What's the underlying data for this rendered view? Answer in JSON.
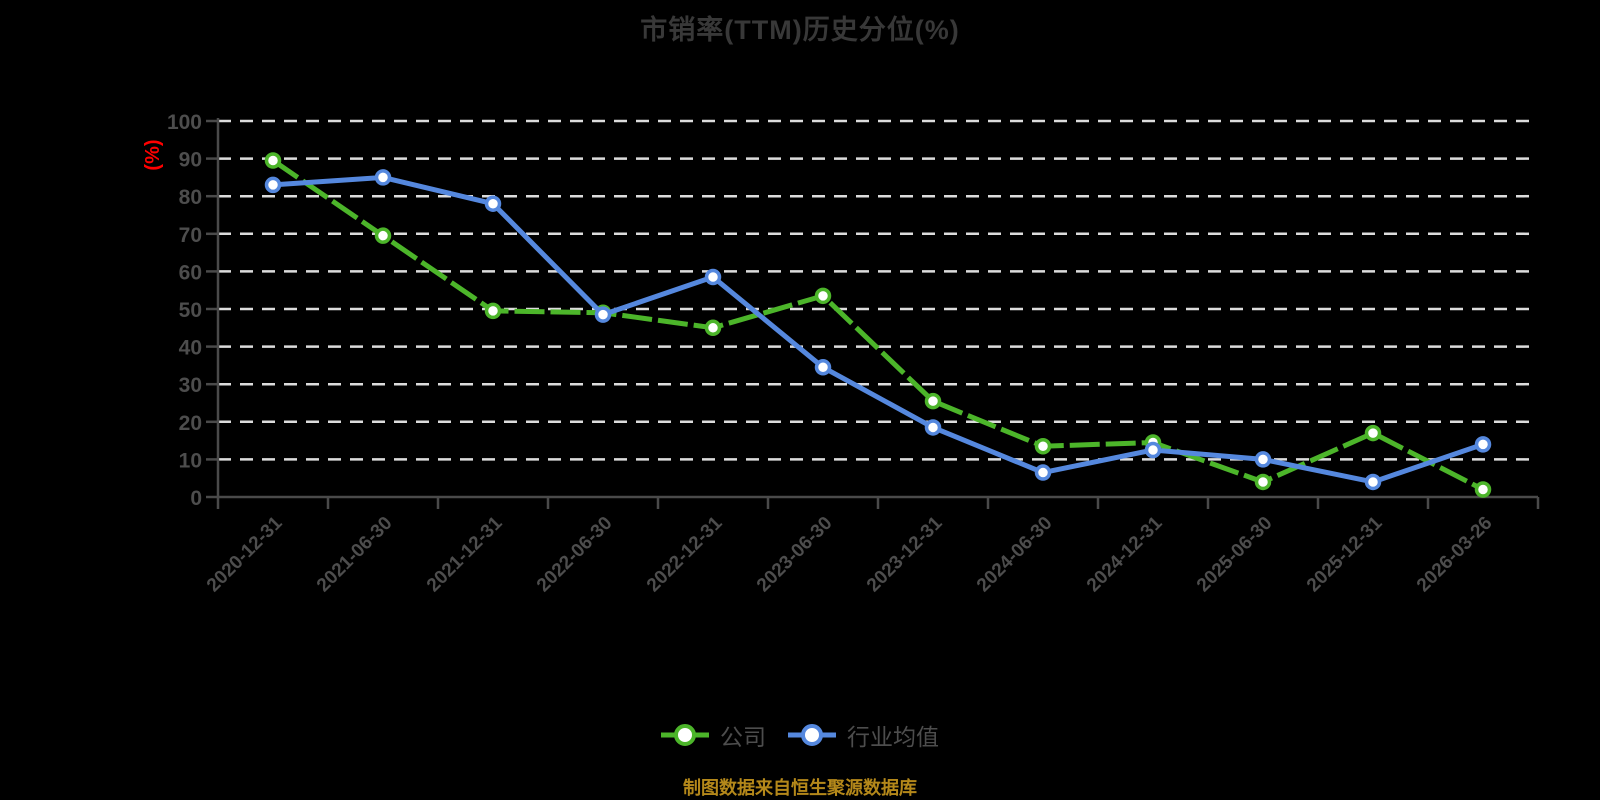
{
  "header": {
    "title": "市销率(TTM)历史分位(%)"
  },
  "footer": {
    "source_note": "制图数据来自恒生聚源数据库",
    "color": "#B4881A"
  },
  "chart_data": {
    "type": "line",
    "title": "市销率(TTM)历史分位(%)",
    "xlabel": "",
    "ylabel": "(%)",
    "ylim": [
      0,
      100
    ],
    "ytick_interval": 10,
    "grid": "horizontal-dashed",
    "legend_position": "bottom-center",
    "categories": [
      "2020-12-31",
      "2021-06-30",
      "2021-12-31",
      "2022-06-30",
      "2022-12-31",
      "2023-06-30",
      "2023-12-31",
      "2024-06-30",
      "2024-12-31",
      "2025-06-30",
      "2025-12-31",
      "2026-03-26"
    ],
    "series": [
      {
        "id": "company",
        "name": "公司",
        "color": "#4CB52A",
        "line_style": "long-dash",
        "values": [
          89.5,
          69.5,
          49.5,
          49,
          45,
          53.5,
          25.5,
          13.5,
          14.5,
          4,
          17,
          2
        ]
      },
      {
        "id": "industry-average",
        "name": "行业均值",
        "color": "#5588DE",
        "line_style": "solid",
        "values": [
          83,
          85,
          78,
          48.5,
          58.5,
          34.5,
          18.5,
          6.5,
          12.5,
          10,
          4,
          14
        ]
      }
    ],
    "colors": {
      "background": "#000000",
      "gridline": "#DCDCDC",
      "axis": "#4A4A4A",
      "tick_label": "#4D4D4D",
      "ylabel": "#FF0000",
      "marker_fill": "#FFFFFF"
    }
  }
}
